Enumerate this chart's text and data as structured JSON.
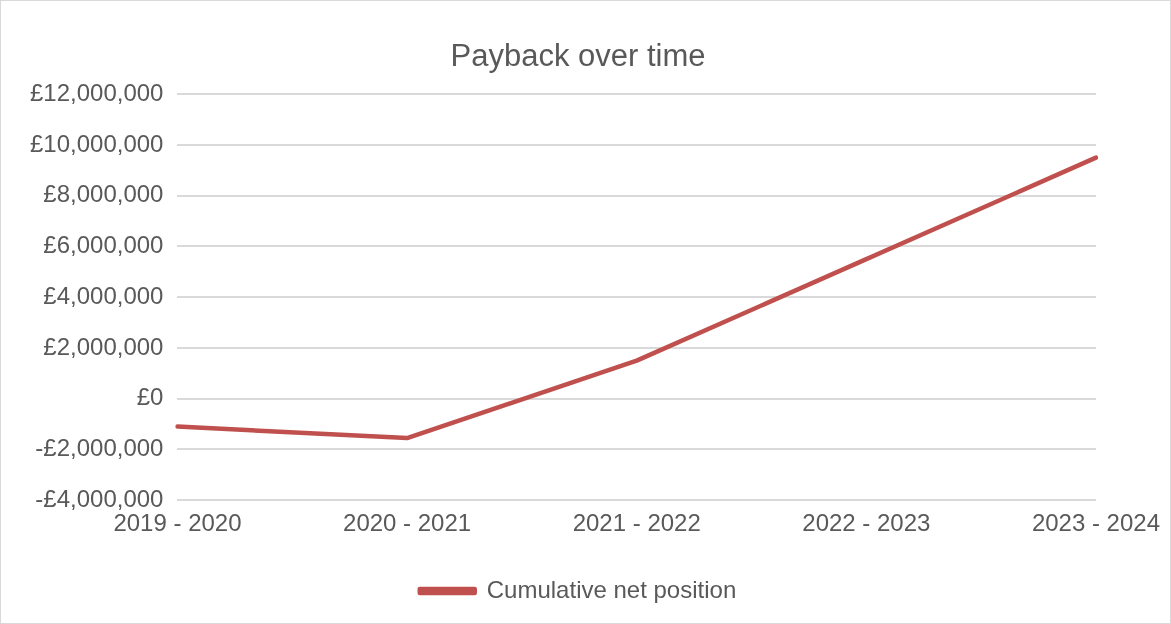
{
  "chart_data": {
    "type": "line",
    "title": "Payback over time",
    "categories": [
      "2019 - 2020",
      "2020 - 2021",
      "2021 - 2022",
      "2022 - 2023",
      "2023 - 2024"
    ],
    "series": [
      {
        "name": "Cumulative net position",
        "color": "#c0504d",
        "values": [
          -1100000,
          -1550000,
          1500000,
          5500000,
          9500000
        ]
      }
    ],
    "ylim": [
      -4000000,
      12000000
    ],
    "yticks": [
      {
        "value": -4000000,
        "label": "-£4,000,000"
      },
      {
        "value": -2000000,
        "label": "-£2,000,000"
      },
      {
        "value": 0,
        "label": "£0"
      },
      {
        "value": 2000000,
        "label": "£2,000,000"
      },
      {
        "value": 4000000,
        "label": "£4,000,000"
      },
      {
        "value": 6000000,
        "label": "£6,000,000"
      },
      {
        "value": 8000000,
        "label": "£8,000,000"
      },
      {
        "value": 10000000,
        "label": "£10,000,000"
      },
      {
        "value": 12000000,
        "label": "£12,000,000"
      }
    ],
    "grid": "y",
    "legend": "bottom",
    "marker": "none",
    "line_style": "solid"
  }
}
